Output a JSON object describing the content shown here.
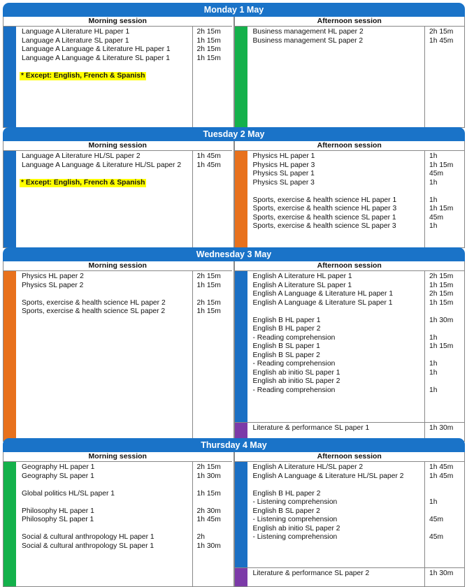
{
  "labels": {
    "morning": "Morning session",
    "afternoon": "Afternoon session"
  },
  "days": [
    {
      "title": "Monday 1 May",
      "morning": [
        {
          "color": "#1a6fc4",
          "rows": [
            {
              "t": "Language A Literature HL paper 1",
              "d": "2h 15m"
            },
            {
              "t": "Language A Literature SL paper 1",
              "d": "1h 15m"
            },
            {
              "t": "Language A Language & Literature HL paper 1",
              "d": "2h 15m"
            },
            {
              "t": "Language A Language & Literature SL paper 1",
              "d": "1h 15m"
            },
            {
              "t": "",
              "d": ""
            },
            {
              "t": "* Except: English, French & Spanish",
              "d": "",
              "note": true
            }
          ]
        }
      ],
      "afternoon": [
        {
          "color": "#14b14b",
          "rows": [
            {
              "t": "Business management HL paper 2",
              "d": "2h 15m"
            },
            {
              "t": "Business management SL paper 2",
              "d": "1h 45m"
            }
          ]
        }
      ]
    },
    {
      "title": "Tuesday 2 May",
      "morning": [
        {
          "color": "#1a6fc4",
          "rows": [
            {
              "t": "Language A Literature HL/SL paper 2",
              "d": "1h 45m"
            },
            {
              "t": "Language A Language & Literature HL/SL paper 2",
              "d": "1h 45m"
            },
            {
              "t": "",
              "d": ""
            },
            {
              "t": "* Except: English, French & Spanish",
              "d": "",
              "note": true
            }
          ]
        }
      ],
      "afternoon": [
        {
          "color": "#e8711c",
          "rows": [
            {
              "t": "Physics HL paper 1",
              "d": "1h"
            },
            {
              "t": "Physics HL paper 3",
              "d": "1h 15m"
            },
            {
              "t": "Physics SL paper 1",
              "d": "45m"
            },
            {
              "t": "Physics SL paper 3",
              "d": "1h"
            },
            {
              "t": "",
              "d": ""
            },
            {
              "t": "Sports, exercise & health science HL paper 1",
              "d": "1h"
            },
            {
              "t": "Sports, exercise & health science HL paper 3",
              "d": "1h 15m"
            },
            {
              "t": "Sports, exercise & health science SL paper 1",
              "d": "45m"
            },
            {
              "t": "Sports, exercise & health science SL paper 3",
              "d": "1h"
            }
          ]
        }
      ]
    },
    {
      "title": "Wednesday 3 May",
      "morning": [
        {
          "color": "#e8711c",
          "rows": [
            {
              "t": "Physics HL paper 2",
              "d": "2h 15m"
            },
            {
              "t": "Physics SL paper 2",
              "d": "1h 15m"
            },
            {
              "t": "",
              "d": ""
            },
            {
              "t": "Sports, exercise & health science HL paper 2",
              "d": "2h 15m"
            },
            {
              "t": "Sports, exercise & health science SL paper 2",
              "d": "1h 15m"
            }
          ]
        }
      ],
      "afternoon": [
        {
          "color": "#1a6fc4",
          "rows": [
            {
              "t": "English A Literature HL paper 1",
              "d": "2h 15m"
            },
            {
              "t": "English A Literature SL paper 1",
              "d": "1h 15m"
            },
            {
              "t": "English A Language & Literature HL paper 1",
              "d": "2h 15m"
            },
            {
              "t": "English A Language & Literature SL paper 1",
              "d": "1h 15m"
            },
            {
              "t": "",
              "d": ""
            },
            {
              "t": "English B HL paper 1",
              "d": "1h 30m"
            },
            {
              "t": "English B HL paper 2",
              "d": ""
            },
            {
              "t": "- Reading comprehension",
              "d": "1h"
            },
            {
              "t": "English B SL paper 1",
              "d": "1h 15m"
            },
            {
              "t": "English B SL paper 2",
              "d": ""
            },
            {
              "t": "- Reading comprehension",
              "d": "1h"
            },
            {
              "t": "English ab initio SL paper 1",
              "d": "1h"
            },
            {
              "t": "English ab initio SL paper 2",
              "d": ""
            },
            {
              "t": "- Reading comprehension",
              "d": "1h"
            }
          ]
        },
        {
          "color": "#7c3aa8",
          "rows": [
            {
              "t": "Literature & performance SL paper 1",
              "d": "1h 30m"
            }
          ]
        }
      ]
    },
    {
      "title": "Thursday 4 May",
      "morning": [
        {
          "color": "#14b14b",
          "rows": [
            {
              "t": "Geography HL paper 1",
              "d": "2h 15m"
            },
            {
              "t": "Geography SL paper 1",
              "d": "1h 30m"
            },
            {
              "t": "",
              "d": ""
            },
            {
              "t": "Global politics HL/SL paper 1",
              "d": "1h 15m"
            },
            {
              "t": "",
              "d": ""
            },
            {
              "t": "Philosophy HL paper 1",
              "d": "2h 30m"
            },
            {
              "t": "Philosophy SL paper 1",
              "d": "1h 45m"
            },
            {
              "t": "",
              "d": ""
            },
            {
              "t": "Social & cultural anthropology HL paper 1",
              "d": "2h"
            },
            {
              "t": "Social & cultural anthropology SL paper 1",
              "d": "1h 30m"
            }
          ]
        }
      ],
      "afternoon": [
        {
          "color": "#1a6fc4",
          "rows": [
            {
              "t": "English A Literature HL/SL paper 2",
              "d": "1h 45m"
            },
            {
              "t": "English A Language & Literature HL/SL paper 2",
              "d": "1h 45m"
            },
            {
              "t": "",
              "d": ""
            },
            {
              "t": "English B HL paper 2",
              "d": ""
            },
            {
              "t": "- Listening comprehension",
              "d": "1h"
            },
            {
              "t": "English B SL paper 2",
              "d": ""
            },
            {
              "t": "- Listening comprehension",
              "d": "45m"
            },
            {
              "t": "English ab initio SL paper 2",
              "d": ""
            },
            {
              "t": "- Listening comprehension",
              "d": "45m"
            }
          ]
        },
        {
          "color": "#7c3aa8",
          "rows": [
            {
              "t": "Literature & performance SL paper 2",
              "d": "1h 30m"
            }
          ]
        }
      ]
    }
  ]
}
